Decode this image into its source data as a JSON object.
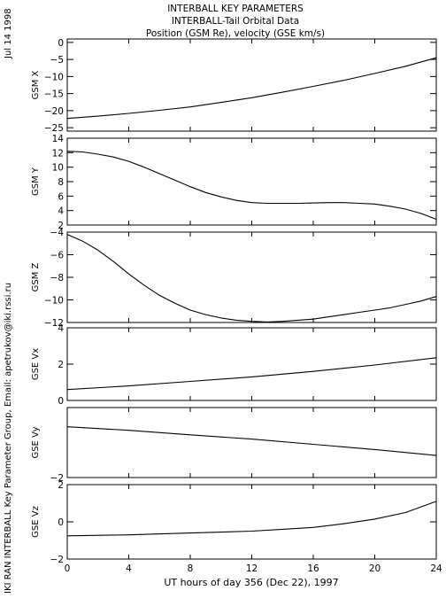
{
  "header": {
    "title_lines": [
      "INTERBALL KEY PARAMETERS",
      "INTERBALL-Tail Orbital Data",
      "Position (GSM Re), velocity (GSE km/s)"
    ]
  },
  "side": {
    "date": "Jul 14 1998",
    "credit": "IKI RAN INTERBALL Key Parameter Group, Email: apetrukov@iki.rssi.ru"
  },
  "x_axis": {
    "title": "UT hours of day 356 (Dec 22), 1997",
    "range": [
      0,
      24
    ],
    "ticks": [
      0,
      4,
      8,
      12,
      16,
      20,
      24
    ]
  },
  "chart_data": [
    {
      "type": "line",
      "ylabel": "GSM X",
      "ylim": [
        -26,
        1
      ],
      "yticks": [
        0,
        -5,
        -10,
        -15,
        -20,
        -25
      ],
      "x": [
        0,
        2,
        4,
        6,
        8,
        10,
        12,
        14,
        16,
        18,
        20,
        22,
        24
      ],
      "values": [
        -22.3,
        -21.6,
        -20.8,
        -19.9,
        -18.9,
        -17.6,
        -16.2,
        -14.6,
        -12.9,
        -11.1,
        -9.1,
        -7.0,
        -4.5
      ]
    },
    {
      "type": "line",
      "ylabel": "GSM Y",
      "ylim": [
        2,
        14
      ],
      "yticks": [
        14,
        12,
        10,
        8,
        6,
        4,
        2
      ],
      "x": [
        0,
        1,
        2,
        3,
        4,
        5,
        6,
        7,
        8,
        9,
        10,
        11,
        12,
        13,
        14,
        15,
        16,
        17,
        18,
        19,
        20,
        21,
        22,
        23,
        24
      ],
      "values": [
        12.2,
        12.1,
        11.8,
        11.4,
        10.8,
        10.0,
        9.1,
        8.2,
        7.3,
        6.5,
        5.9,
        5.4,
        5.1,
        5.0,
        5.0,
        5.0,
        5.05,
        5.1,
        5.1,
        5.0,
        4.9,
        4.6,
        4.2,
        3.6,
        2.8
      ]
    },
    {
      "type": "line",
      "ylabel": "GSM Z",
      "ylim": [
        -12,
        -4
      ],
      "yticks": [
        -4,
        -6,
        -8,
        -10,
        -12
      ],
      "x": [
        0,
        1,
        2,
        3,
        4,
        5,
        6,
        7,
        8,
        9,
        10,
        11,
        12,
        13,
        14,
        15,
        16,
        17,
        18,
        19,
        20,
        21,
        22,
        23,
        24
      ],
      "values": [
        -4.2,
        -4.8,
        -5.6,
        -6.6,
        -7.7,
        -8.7,
        -9.6,
        -10.3,
        -10.9,
        -11.3,
        -11.6,
        -11.8,
        -11.9,
        -11.95,
        -11.9,
        -11.8,
        -11.7,
        -11.5,
        -11.3,
        -11.1,
        -10.9,
        -10.7,
        -10.4,
        -10.1,
        -9.7
      ]
    },
    {
      "type": "line",
      "ylabel": "GSE Vx",
      "ylim": [
        0,
        4
      ],
      "yticks": [
        4,
        2,
        0
      ],
      "x": [
        0,
        4,
        8,
        12,
        16,
        20,
        24
      ],
      "values": [
        0.6,
        0.8,
        1.05,
        1.3,
        1.6,
        1.95,
        2.35
      ]
    },
    {
      "type": "line",
      "ylabel": "GSE Vy",
      "ylim": [
        -2,
        0
      ],
      "yticks": [
        -2
      ],
      "x": [
        0,
        4,
        8,
        12,
        16,
        20,
        24
      ],
      "values": [
        -0.55,
        -0.65,
        -0.78,
        -0.9,
        -1.05,
        -1.2,
        -1.37
      ]
    },
    {
      "type": "line",
      "ylabel": "GSE Vz",
      "ylim": [
        -2,
        2
      ],
      "yticks": [
        2,
        0,
        -2
      ],
      "x": [
        0,
        4,
        8,
        12,
        14,
        16,
        18,
        20,
        22,
        24
      ],
      "values": [
        -0.75,
        -0.7,
        -0.6,
        -0.5,
        -0.4,
        -0.3,
        -0.1,
        0.15,
        0.5,
        1.1
      ]
    }
  ]
}
